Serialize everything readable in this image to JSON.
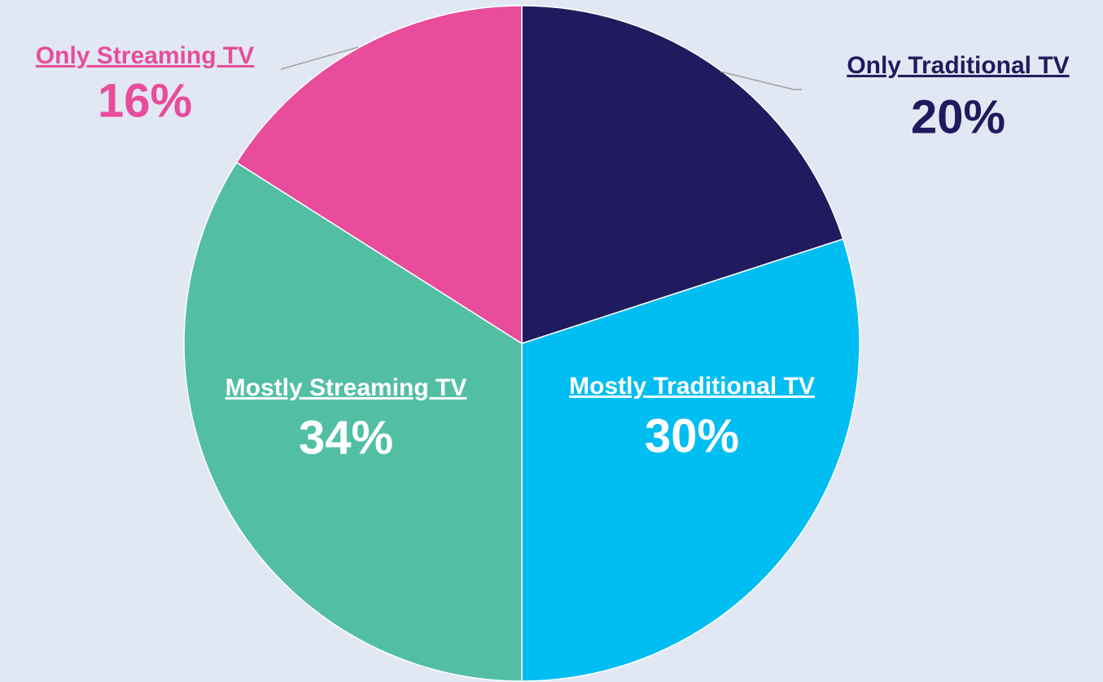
{
  "chart_data": {
    "type": "pie",
    "categories": [
      "Only Traditional TV",
      "Mostly Traditional TV",
      "Mostly Streaming TV",
      "Only Streaming TV"
    ],
    "values": [
      20,
      30,
      34,
      16
    ],
    "value_labels": [
      "20%",
      "30%",
      "34%",
      "16%"
    ],
    "colors": [
      "#201a5e",
      "#00bef2",
      "#52bfa5",
      "#e84c9b"
    ]
  }
}
